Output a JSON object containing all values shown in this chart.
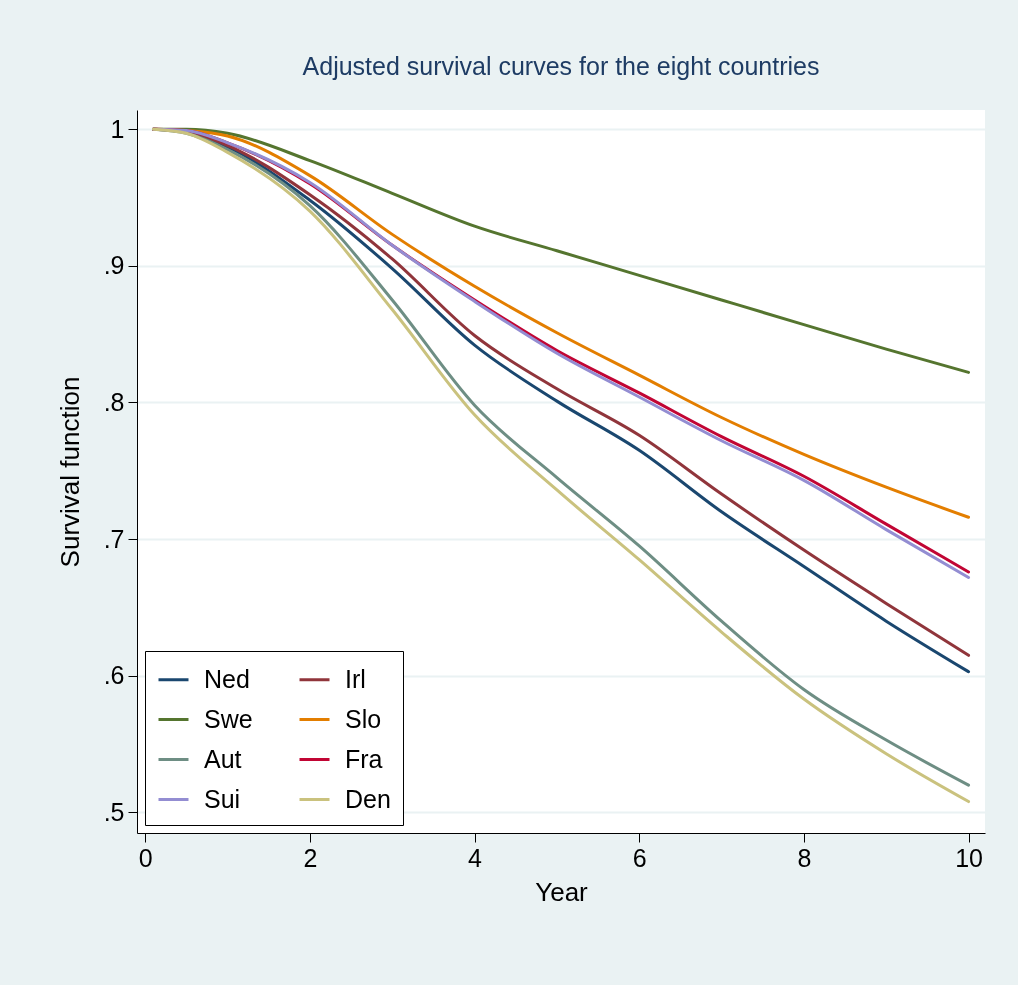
{
  "chart_data": {
    "type": "line",
    "title": "Adjusted survival curves for the eight countries",
    "xlabel": "Year",
    "ylabel": "Survival function",
    "x": [
      0.1,
      0.5,
      1,
      2,
      3,
      4,
      5,
      6,
      7,
      8,
      9,
      10
    ],
    "series": [
      {
        "name": "Ned",
        "color": "#1a476f",
        "values": [
          1,
          0.998,
          0.987,
          0.948,
          0.898,
          0.842,
          0.801,
          0.765,
          0.72,
          0.68,
          0.64,
          0.603
        ]
      },
      {
        "name": "Irl",
        "color": "#90353b",
        "values": [
          1,
          0.998,
          0.988,
          0.952,
          0.905,
          0.849,
          0.81,
          0.776,
          0.733,
          0.692,
          0.653,
          0.615
        ]
      },
      {
        "name": "Swe",
        "color": "#55752f",
        "values": [
          1,
          1,
          0.997,
          0.977,
          0.953,
          0.929,
          0.911,
          0.893,
          0.875,
          0.857,
          0.839,
          0.822
        ]
      },
      {
        "name": "Slo",
        "color": "#e37e00",
        "values": [
          1,
          0.999,
          0.995,
          0.966,
          0.923,
          0.885,
          0.851,
          0.82,
          0.789,
          0.762,
          0.738,
          0.716
        ]
      },
      {
        "name": "Aut",
        "color": "#6e8e84",
        "values": [
          1,
          0.997,
          0.985,
          0.944,
          0.875,
          0.798,
          0.745,
          0.695,
          0.64,
          0.59,
          0.553,
          0.52
        ]
      },
      {
        "name": "Fra",
        "color": "#c10534",
        "values": [
          1,
          0.999,
          0.99,
          0.96,
          0.915,
          0.875,
          0.838,
          0.807,
          0.775,
          0.746,
          0.711,
          0.676
        ]
      },
      {
        "name": "Sui",
        "color": "#938dd2",
        "values": [
          1,
          0.999,
          0.99,
          0.961,
          0.915,
          0.874,
          0.836,
          0.804,
          0.772,
          0.743,
          0.707,
          0.672
        ]
      },
      {
        "name": "Den",
        "color": "#cac27e",
        "values": [
          1,
          0.997,
          0.983,
          0.94,
          0.868,
          0.791,
          0.736,
          0.685,
          0.632,
          0.583,
          0.543,
          0.508
        ]
      }
    ],
    "xlim": [
      -0.1,
      10.2
    ],
    "ylim": [
      0.485,
      1.014
    ],
    "xticks": [
      0,
      2,
      4,
      6,
      8,
      10
    ],
    "yticks": [
      {
        "value": 0.5,
        "label": ".5"
      },
      {
        "value": 0.6,
        "label": ".6"
      },
      {
        "value": 0.7,
        "label": ".7"
      },
      {
        "value": 0.8,
        "label": ".8"
      },
      {
        "value": 0.9,
        "label": ".9"
      },
      1
    ],
    "grid": "y",
    "legend": "bottom left"
  }
}
